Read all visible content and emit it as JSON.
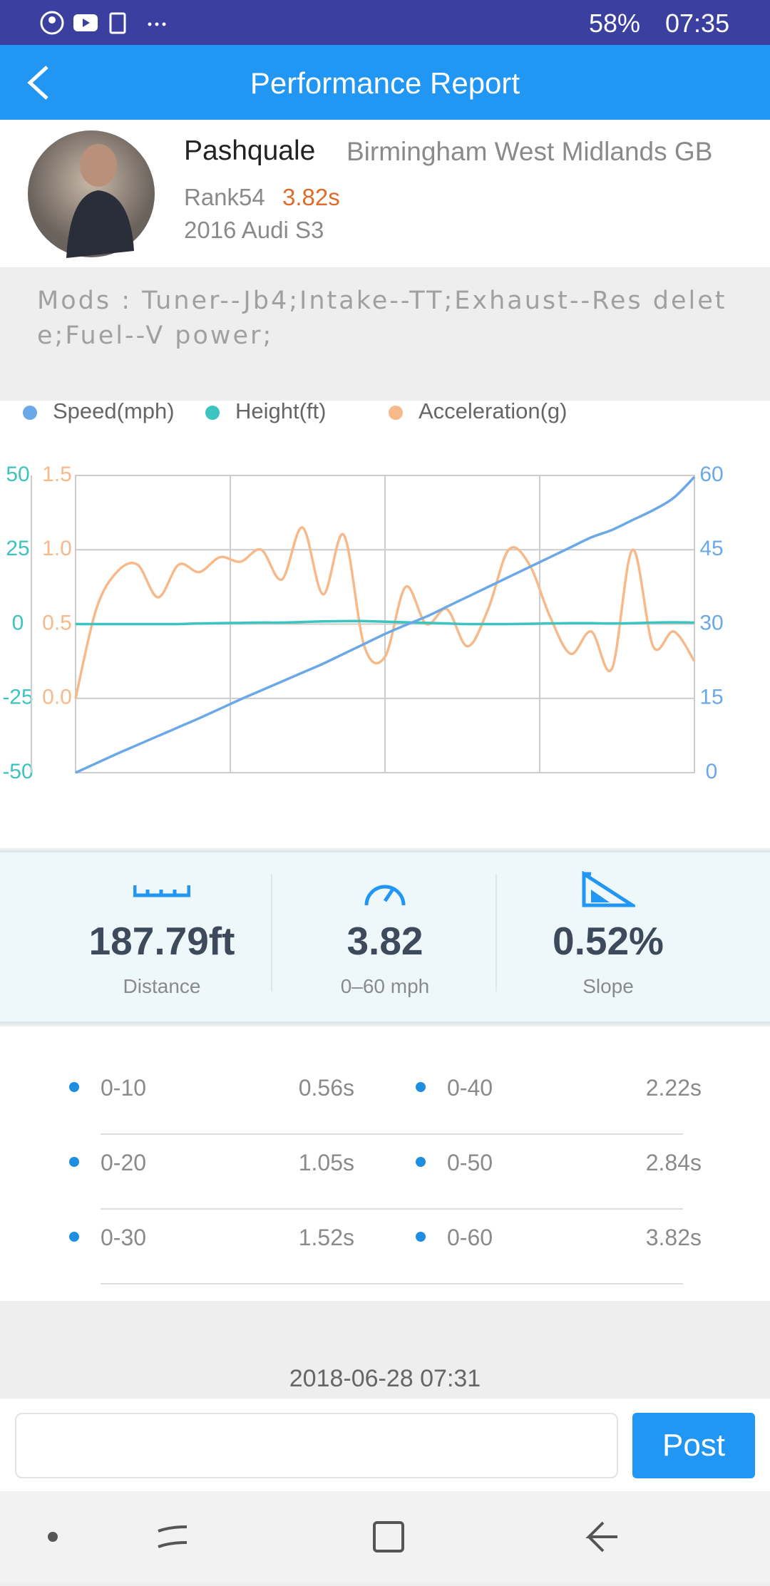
{
  "status_bar": {
    "battery": "58%",
    "time": "07:35"
  },
  "header": {
    "title": "Performance Report"
  },
  "profile": {
    "name": "Pashquale",
    "location": "Birmingham West Midlands GB",
    "rank": "Rank54",
    "best_time": "3.82s",
    "car": "2016 Audi S3"
  },
  "mods": "Mods :  Tuner--Jb4;Intake--TT;Exhaust--Res delete;Fuel--V power;",
  "chart_data": {
    "type": "line",
    "grid": true,
    "ylim": [
      -50,
      50
    ],
    "yticks": [
      -50,
      -25,
      0,
      25,
      50
    ],
    "ycolor": "#3cc4c0",
    "y2lim": [
      0,
      60
    ],
    "y2ticks": [
      0,
      15,
      30,
      45,
      60
    ],
    "y2color": "#6aa8e8",
    "y3lim": [
      -0.5,
      1.5
    ],
    "y3ticks": [
      {
        "value": 0,
        "label": "0.0"
      },
      0.5,
      {
        "value": 1,
        "label": "1.0"
      },
      1.5
    ],
    "y3color": "#f8b98a",
    "series": [
      {
        "name": "Speed(mph)",
        "color": "#6aa8e8",
        "axis": "y2",
        "values": [
          0,
          1.9,
          3.8,
          5.6,
          7.4,
          9.2,
          11,
          12.9,
          14.8,
          16.6,
          18.4,
          20.2,
          22,
          24,
          26,
          28,
          29.8,
          31.5,
          33.5,
          35.5,
          37.5,
          39.5,
          41.5,
          43.5,
          45.5,
          47.5,
          49,
          51,
          53,
          55.5,
          59.7
        ]
      },
      {
        "name": "Height(ft)",
        "color": "#3cc4c0",
        "axis": "y",
        "values": [
          0,
          0,
          0,
          0,
          0,
          0,
          0.2,
          0.3,
          0.4,
          0.5,
          0.5,
          0.7,
          0.9,
          1,
          1,
          0.8,
          0.6,
          0.4,
          0.2,
          0,
          0,
          0,
          0.1,
          0.2,
          0.3,
          0.3,
          0.2,
          0.3,
          0.5,
          0.6,
          0.5
        ]
      },
      {
        "name": "Acceleration(g)",
        "color": "#f8b98a",
        "axis": "y3",
        "values": [
          0,
          0.6,
          0.85,
          0.9,
          0.68,
          0.9,
          0.85,
          0.95,
          0.92,
          1,
          0.8,
          1.15,
          0.7,
          1.1,
          0.35,
          0.28,
          0.75,
          0.5,
          0.6,
          0.35,
          0.6,
          1,
          0.9,
          0.55,
          0.3,
          0.45,
          0.2,
          1,
          0.35,
          0.45,
          0.25
        ]
      }
    ]
  },
  "stats": [
    {
      "value": "187.79ft",
      "label": "Distance"
    },
    {
      "value": "3.82",
      "label": "0–60 mph"
    },
    {
      "value": "0.52%",
      "label": "Slope"
    }
  ],
  "splits": [
    {
      "label": "0-10",
      "time": "0.56s"
    },
    {
      "label": "0-20",
      "time": "1.05s"
    },
    {
      "label": "0-30",
      "time": "1.52s"
    },
    {
      "label": "0-40",
      "time": "2.22s"
    },
    {
      "label": "0-50",
      "time": "2.84s"
    },
    {
      "label": "0-60",
      "time": "3.82s"
    }
  ],
  "date": "2018-06-28 07:31",
  "comment": {
    "button": "Post"
  }
}
